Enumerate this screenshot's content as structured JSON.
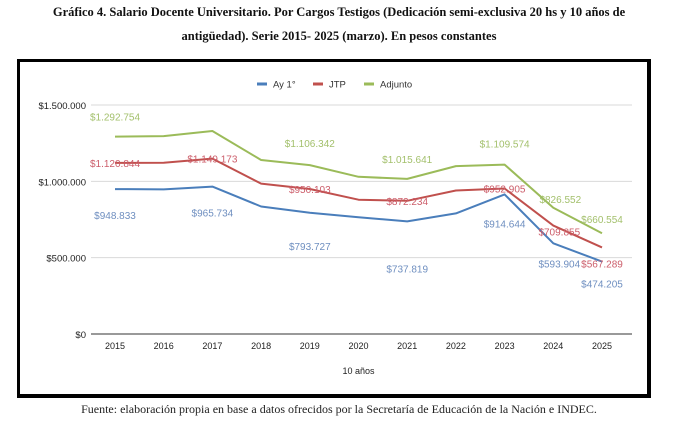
{
  "page": {
    "title_line1": "Gráfico 4. Salario Docente Universitario. Por Cargos Testigos (Dedicación semi-exclusiva 20 hs y 10 años de",
    "title_line2": "antigüedad). Serie 2015- 2025 (marzo). En pesos constantes",
    "source": "Fuente: elaboración propia en base a datos ofrecidos por la Secretaría de Educación de la Nación e INDEC."
  },
  "chart_data": {
    "type": "line",
    "title": "Gráfico 4. Salario Docente Universitario. Por Cargos Testigos (Dedicación semi-exclusiva 20 hs y 10 años de antigüedad). Serie 2015- 2025 (marzo). En pesos constantes",
    "xlabel": "10 años",
    "ylabel": "",
    "categories": [
      "2015",
      "2016",
      "2017",
      "2018",
      "2019",
      "2020",
      "2021",
      "2022",
      "2023",
      "2024",
      "2025"
    ],
    "ylim": [
      0,
      1500000
    ],
    "yticks": [
      0,
      500000,
      1000000,
      1500000
    ],
    "ytick_labels": [
      "$0",
      "$500.000",
      "$1.000.000",
      "$1.500.000"
    ],
    "grid": true,
    "legend_position": "top-center",
    "series": [
      {
        "name": "Ay 1°",
        "color": "#4a7ebb",
        "label_color": "#6f8fc0",
        "values": [
          948833,
          947000,
          965734,
          835000,
          793727,
          765000,
          737819,
          790000,
          914644,
          593904,
          474205
        ],
        "labels": [
          "$948.833",
          null,
          "$965.734",
          null,
          "$793.727",
          null,
          "$737.819",
          null,
          "$914.644",
          "$593.904",
          "$474.205"
        ]
      },
      {
        "name": "JTP",
        "color": "#c0504d",
        "label_color": "#cc5d6a",
        "values": [
          1120844,
          1122000,
          1149173,
          985000,
          950103,
          880000,
          872234,
          940000,
          952905,
          709855,
          567289
        ],
        "labels": [
          "$1.120.844",
          null,
          "$1.149.173",
          null,
          "$950.103",
          null,
          "$872.234",
          null,
          "$952.905",
          "$709.855",
          "$567.289"
        ]
      },
      {
        "name": "Adjunto",
        "color": "#9bbb59",
        "label_color": "#a3c06c",
        "values": [
          1292754,
          1296000,
          1330000,
          1140000,
          1106342,
          1030000,
          1015641,
          1100000,
          1109574,
          826552,
          660554
        ],
        "labels": [
          "$1.292.754",
          null,
          null,
          null,
          "$1.106.342",
          null,
          "$1.015.641",
          null,
          "$1.109.574",
          "$826.552",
          "$660.554"
        ]
      }
    ]
  }
}
